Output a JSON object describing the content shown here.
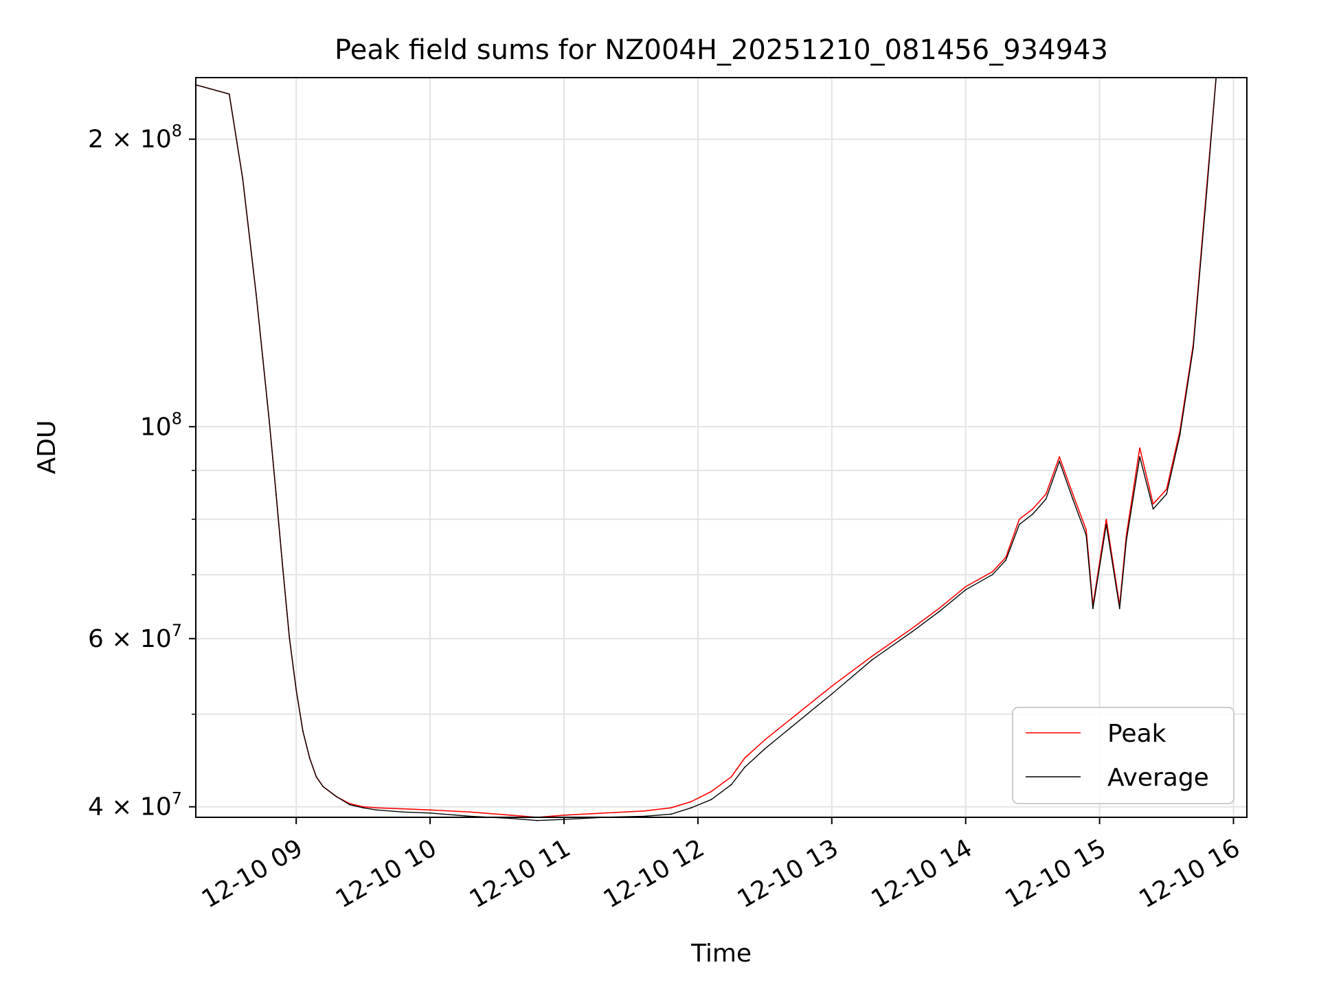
{
  "chart_data": {
    "type": "line",
    "title": "Peak field sums for NZ004H_20251210_081456_934943",
    "xlabel": "Time",
    "ylabel": "ADU",
    "y_scale": "log",
    "ylim": [
      39000000,
      232000000
    ],
    "xlim_hours": [
      8.25,
      16.1
    ],
    "grid": true,
    "legend_position": "lower right",
    "x_ticks": [
      {
        "value": 9,
        "label": "12-10 09"
      },
      {
        "value": 10,
        "label": "12-10 10"
      },
      {
        "value": 11,
        "label": "12-10 11"
      },
      {
        "value": 12,
        "label": "12-10 12"
      },
      {
        "value": 13,
        "label": "12-10 13"
      },
      {
        "value": 14,
        "label": "12-10 14"
      },
      {
        "value": 15,
        "label": "12-10 15"
      },
      {
        "value": 16,
        "label": "12-10 16"
      }
    ],
    "y_ticks_major": [
      {
        "value": 40000000,
        "base": "4 × 10",
        "exp": "7",
        "label": "4 × 10^7"
      },
      {
        "value": 60000000,
        "base": "6 × 10",
        "exp": "7",
        "label": "6 × 10^7"
      },
      {
        "value": 100000000,
        "base": "10",
        "exp": "8",
        "label": "10^8"
      },
      {
        "value": 200000000,
        "base": "2 × 10",
        "exp": "8",
        "label": "2 × 10^8"
      }
    ],
    "y_ticks_minor": [
      50000000,
      70000000,
      80000000,
      90000000
    ],
    "series": [
      {
        "name": "Peak",
        "color": "#ff0000",
        "x_hours": [
          8.25,
          8.5,
          8.6,
          8.7,
          8.75,
          8.8,
          8.85,
          8.9,
          8.95,
          9.0,
          9.05,
          9.1,
          9.15,
          9.2,
          9.3,
          9.4,
          9.5,
          9.6,
          9.8,
          10.0,
          10.3,
          10.6,
          10.8,
          11.0,
          11.3,
          11.6,
          11.8,
          11.95,
          12.1,
          12.25,
          12.35,
          12.5,
          12.7,
          13.0,
          13.3,
          13.6,
          13.8,
          14.0,
          14.2,
          14.3,
          14.4,
          14.5,
          14.6,
          14.7,
          14.8,
          14.9,
          14.95,
          15.05,
          15.15,
          15.2,
          15.3,
          15.4,
          15.5,
          15.6,
          15.7,
          15.8,
          15.87
        ],
        "values": [
          228000000,
          223000000,
          182000000,
          138000000,
          118000000,
          101000000,
          85000000,
          71000000,
          60000000,
          53000000,
          48000000,
          45000000,
          43000000,
          42000000,
          41000000,
          40300000,
          40000000,
          39900000,
          39800000,
          39700000,
          39500000,
          39200000,
          39000000,
          39200000,
          39400000,
          39600000,
          39900000,
          40500000,
          41500000,
          43000000,
          45000000,
          47000000,
          49500000,
          53500000,
          57500000,
          61500000,
          64500000,
          68000000,
          70500000,
          73000000,
          80000000,
          82000000,
          85000000,
          93000000,
          85000000,
          78000000,
          65000000,
          80000000,
          65000000,
          77000000,
          95000000,
          83000000,
          86000000,
          99000000,
          122000000,
          178000000,
          232000000
        ]
      },
      {
        "name": "Average",
        "color": "#000000",
        "x_hours": [
          8.25,
          8.5,
          8.6,
          8.7,
          8.75,
          8.8,
          8.85,
          8.9,
          8.95,
          9.0,
          9.05,
          9.1,
          9.15,
          9.2,
          9.3,
          9.4,
          9.5,
          9.6,
          9.8,
          10.0,
          10.3,
          10.6,
          10.8,
          11.0,
          11.3,
          11.6,
          11.8,
          11.95,
          12.1,
          12.25,
          12.35,
          12.5,
          12.7,
          13.0,
          13.3,
          13.6,
          13.8,
          14.0,
          14.2,
          14.3,
          14.4,
          14.5,
          14.6,
          14.7,
          14.8,
          14.9,
          14.95,
          15.05,
          15.15,
          15.2,
          15.3,
          15.4,
          15.5,
          15.6,
          15.7,
          15.8,
          15.87
        ],
        "values": [
          228000000,
          223000000,
          182000000,
          138000000,
          118000000,
          101000000,
          85000000,
          71000000,
          60000000,
          53000000,
          48000000,
          45000000,
          43000000,
          42000000,
          41000000,
          40200000,
          39900000,
          39700000,
          39500000,
          39400000,
          39100000,
          38900000,
          38700000,
          38800000,
          39000000,
          39100000,
          39300000,
          39900000,
          40700000,
          42200000,
          44000000,
          46000000,
          48500000,
          52500000,
          57000000,
          61000000,
          64000000,
          67500000,
          70000000,
          72500000,
          79000000,
          81000000,
          84000000,
          92000000,
          84000000,
          77000000,
          64500000,
          79000000,
          64500000,
          76000000,
          93000000,
          82000000,
          85000000,
          98000000,
          121000000,
          176000000,
          232000000
        ]
      }
    ]
  }
}
